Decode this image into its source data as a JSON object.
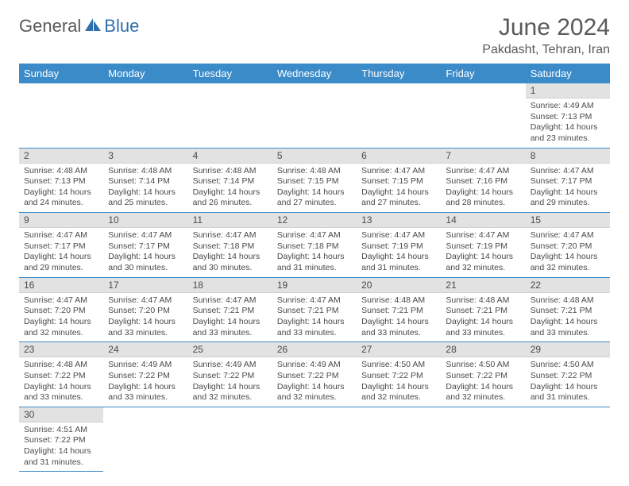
{
  "logo": {
    "part1": "General",
    "part2": "Blue"
  },
  "title": "June 2024",
  "location": "Pakdasht, Tehran, Iran",
  "colors": {
    "header_bg": "#3b8bc9",
    "header_text": "#ffffff",
    "daynum_bg": "#e2e2e2",
    "text": "#4a4a4a",
    "logo_gray": "#5a5a5a",
    "logo_blue": "#2f6fad",
    "row_divider": "#3b8bc9"
  },
  "weekdays": [
    "Sunday",
    "Monday",
    "Tuesday",
    "Wednesday",
    "Thursday",
    "Friday",
    "Saturday"
  ],
  "weeks": [
    [
      null,
      null,
      null,
      null,
      null,
      null,
      {
        "n": "1",
        "sunrise": "Sunrise: 4:49 AM",
        "sunset": "Sunset: 7:13 PM",
        "day1": "Daylight: 14 hours",
        "day2": "and 23 minutes."
      }
    ],
    [
      {
        "n": "2",
        "sunrise": "Sunrise: 4:48 AM",
        "sunset": "Sunset: 7:13 PM",
        "day1": "Daylight: 14 hours",
        "day2": "and 24 minutes."
      },
      {
        "n": "3",
        "sunrise": "Sunrise: 4:48 AM",
        "sunset": "Sunset: 7:14 PM",
        "day1": "Daylight: 14 hours",
        "day2": "and 25 minutes."
      },
      {
        "n": "4",
        "sunrise": "Sunrise: 4:48 AM",
        "sunset": "Sunset: 7:14 PM",
        "day1": "Daylight: 14 hours",
        "day2": "and 26 minutes."
      },
      {
        "n": "5",
        "sunrise": "Sunrise: 4:48 AM",
        "sunset": "Sunset: 7:15 PM",
        "day1": "Daylight: 14 hours",
        "day2": "and 27 minutes."
      },
      {
        "n": "6",
        "sunrise": "Sunrise: 4:47 AM",
        "sunset": "Sunset: 7:15 PM",
        "day1": "Daylight: 14 hours",
        "day2": "and 27 minutes."
      },
      {
        "n": "7",
        "sunrise": "Sunrise: 4:47 AM",
        "sunset": "Sunset: 7:16 PM",
        "day1": "Daylight: 14 hours",
        "day2": "and 28 minutes."
      },
      {
        "n": "8",
        "sunrise": "Sunrise: 4:47 AM",
        "sunset": "Sunset: 7:17 PM",
        "day1": "Daylight: 14 hours",
        "day2": "and 29 minutes."
      }
    ],
    [
      {
        "n": "9",
        "sunrise": "Sunrise: 4:47 AM",
        "sunset": "Sunset: 7:17 PM",
        "day1": "Daylight: 14 hours",
        "day2": "and 29 minutes."
      },
      {
        "n": "10",
        "sunrise": "Sunrise: 4:47 AM",
        "sunset": "Sunset: 7:17 PM",
        "day1": "Daylight: 14 hours",
        "day2": "and 30 minutes."
      },
      {
        "n": "11",
        "sunrise": "Sunrise: 4:47 AM",
        "sunset": "Sunset: 7:18 PM",
        "day1": "Daylight: 14 hours",
        "day2": "and 30 minutes."
      },
      {
        "n": "12",
        "sunrise": "Sunrise: 4:47 AM",
        "sunset": "Sunset: 7:18 PM",
        "day1": "Daylight: 14 hours",
        "day2": "and 31 minutes."
      },
      {
        "n": "13",
        "sunrise": "Sunrise: 4:47 AM",
        "sunset": "Sunset: 7:19 PM",
        "day1": "Daylight: 14 hours",
        "day2": "and 31 minutes."
      },
      {
        "n": "14",
        "sunrise": "Sunrise: 4:47 AM",
        "sunset": "Sunset: 7:19 PM",
        "day1": "Daylight: 14 hours",
        "day2": "and 32 minutes."
      },
      {
        "n": "15",
        "sunrise": "Sunrise: 4:47 AM",
        "sunset": "Sunset: 7:20 PM",
        "day1": "Daylight: 14 hours",
        "day2": "and 32 minutes."
      }
    ],
    [
      {
        "n": "16",
        "sunrise": "Sunrise: 4:47 AM",
        "sunset": "Sunset: 7:20 PM",
        "day1": "Daylight: 14 hours",
        "day2": "and 32 minutes."
      },
      {
        "n": "17",
        "sunrise": "Sunrise: 4:47 AM",
        "sunset": "Sunset: 7:20 PM",
        "day1": "Daylight: 14 hours",
        "day2": "and 33 minutes."
      },
      {
        "n": "18",
        "sunrise": "Sunrise: 4:47 AM",
        "sunset": "Sunset: 7:21 PM",
        "day1": "Daylight: 14 hours",
        "day2": "and 33 minutes."
      },
      {
        "n": "19",
        "sunrise": "Sunrise: 4:47 AM",
        "sunset": "Sunset: 7:21 PM",
        "day1": "Daylight: 14 hours",
        "day2": "and 33 minutes."
      },
      {
        "n": "20",
        "sunrise": "Sunrise: 4:48 AM",
        "sunset": "Sunset: 7:21 PM",
        "day1": "Daylight: 14 hours",
        "day2": "and 33 minutes."
      },
      {
        "n": "21",
        "sunrise": "Sunrise: 4:48 AM",
        "sunset": "Sunset: 7:21 PM",
        "day1": "Daylight: 14 hours",
        "day2": "and 33 minutes."
      },
      {
        "n": "22",
        "sunrise": "Sunrise: 4:48 AM",
        "sunset": "Sunset: 7:21 PM",
        "day1": "Daylight: 14 hours",
        "day2": "and 33 minutes."
      }
    ],
    [
      {
        "n": "23",
        "sunrise": "Sunrise: 4:48 AM",
        "sunset": "Sunset: 7:22 PM",
        "day1": "Daylight: 14 hours",
        "day2": "and 33 minutes."
      },
      {
        "n": "24",
        "sunrise": "Sunrise: 4:49 AM",
        "sunset": "Sunset: 7:22 PM",
        "day1": "Daylight: 14 hours",
        "day2": "and 33 minutes."
      },
      {
        "n": "25",
        "sunrise": "Sunrise: 4:49 AM",
        "sunset": "Sunset: 7:22 PM",
        "day1": "Daylight: 14 hours",
        "day2": "and 32 minutes."
      },
      {
        "n": "26",
        "sunrise": "Sunrise: 4:49 AM",
        "sunset": "Sunset: 7:22 PM",
        "day1": "Daylight: 14 hours",
        "day2": "and 32 minutes."
      },
      {
        "n": "27",
        "sunrise": "Sunrise: 4:50 AM",
        "sunset": "Sunset: 7:22 PM",
        "day1": "Daylight: 14 hours",
        "day2": "and 32 minutes."
      },
      {
        "n": "28",
        "sunrise": "Sunrise: 4:50 AM",
        "sunset": "Sunset: 7:22 PM",
        "day1": "Daylight: 14 hours",
        "day2": "and 32 minutes."
      },
      {
        "n": "29",
        "sunrise": "Sunrise: 4:50 AM",
        "sunset": "Sunset: 7:22 PM",
        "day1": "Daylight: 14 hours",
        "day2": "and 31 minutes."
      }
    ],
    [
      {
        "n": "30",
        "sunrise": "Sunrise: 4:51 AM",
        "sunset": "Sunset: 7:22 PM",
        "day1": "Daylight: 14 hours",
        "day2": "and 31 minutes."
      },
      null,
      null,
      null,
      null,
      null,
      null
    ]
  ]
}
